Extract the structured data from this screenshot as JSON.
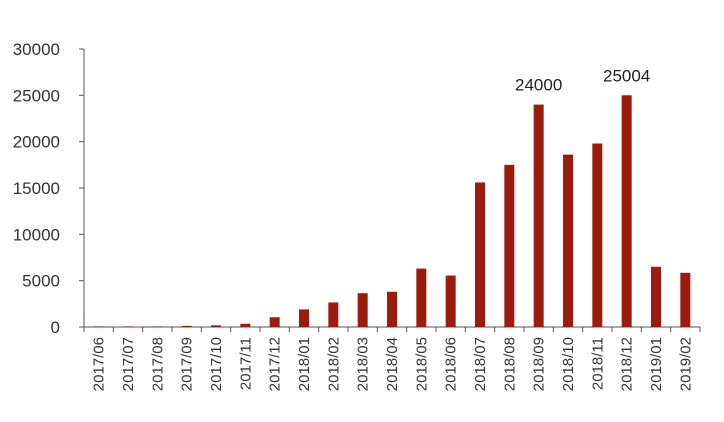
{
  "chart_data": {
    "type": "bar",
    "title": "",
    "xlabel": "",
    "ylabel": "",
    "ylim": [
      0,
      30000
    ],
    "yticks": [
      0,
      5000,
      10000,
      15000,
      20000,
      25000,
      30000
    ],
    "grid": false,
    "categories": [
      "2017/06",
      "2017/07",
      "2017/08",
      "2017/09",
      "2017/10",
      "2017/11",
      "2017/12",
      "2018/01",
      "2018/02",
      "2018/03",
      "2018/04",
      "2018/05",
      "2018/06",
      "2018/07",
      "2018/08",
      "2018/09",
      "2018/10",
      "2018/11",
      "2018/12",
      "2019/01",
      "2019/02"
    ],
    "values": [
      10,
      20,
      60,
      120,
      180,
      350,
      1050,
      1900,
      2650,
      3650,
      3800,
      6300,
      5550,
      15600,
      17500,
      24000,
      18600,
      19800,
      25004,
      6500,
      5850
    ],
    "data_labels": [
      {
        "category": "2018/09",
        "text": "24000"
      },
      {
        "category": "2018/12",
        "text": "25004"
      }
    ],
    "colors": {
      "bar": "#9B1B0C",
      "axis": "#555555",
      "text": "#333333"
    }
  }
}
